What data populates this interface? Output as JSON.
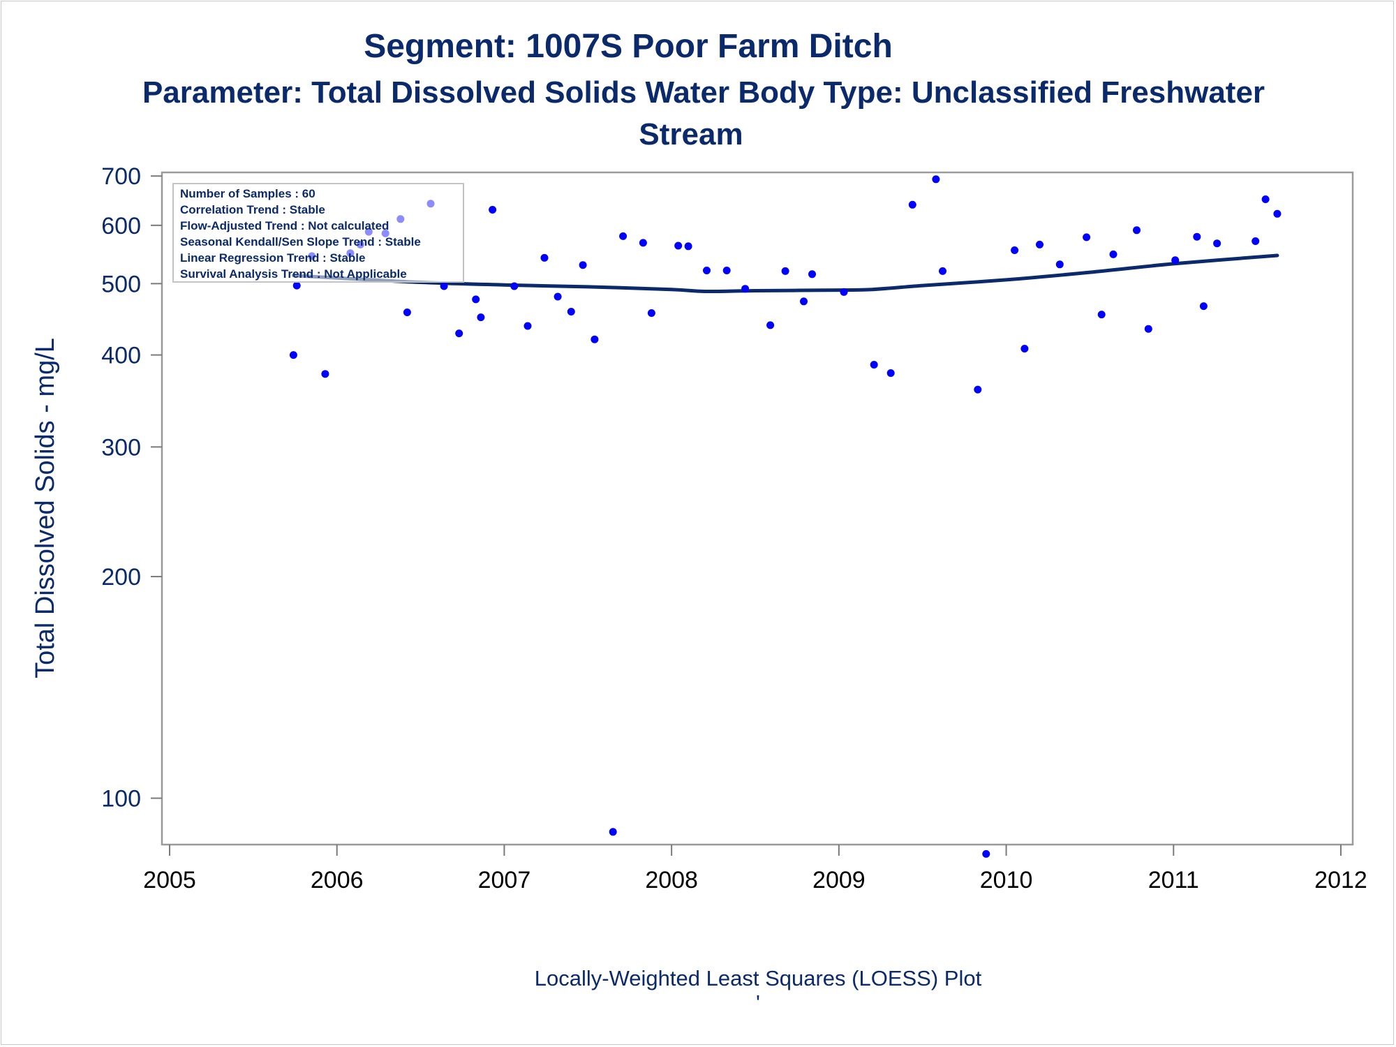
{
  "chart_data": {
    "type": "scatter",
    "title": "Segment: 1007S  Poor Farm Ditch",
    "subtitle_line1": "Parameter: Total Dissolved Solids   Water Body Type: Unclassified Freshwater",
    "subtitle_line2": "Stream",
    "ylabel": "Total Dissolved Solids - mg/L",
    "footnote": "Locally-Weighted Least Squares (LOESS) Plot",
    "footnote_mark": "'",
    "y_scale": "log",
    "ylim": [
      85,
      730
    ],
    "xlim": [
      2005,
      2012
    ],
    "x_ticks": [
      "2005",
      "2006",
      "2007",
      "2008",
      "2009",
      "2010",
      "2011",
      "2012"
    ],
    "y_ticks": [
      "100",
      "200",
      "300",
      "400",
      "500",
      "600",
      "700"
    ],
    "stats": [
      "Number of Samples : 60",
      "Correlation Trend : Stable",
      "Flow-Adjusted Trend : Not calculated",
      "Seasonal Kendall/Sen Slope Trend : Stable",
      "Linear Regression Trend : Stable",
      "Survival Analysis Trend : Not Applicable"
    ],
    "series": [
      {
        "kind": "points",
        "color": "#0000ff",
        "points": [
          [
            2005.74,
            400
          ],
          [
            2005.76,
            497
          ],
          [
            2005.85,
            545
          ],
          [
            2005.93,
            377
          ],
          [
            2006.08,
            550
          ],
          [
            2006.14,
            565
          ],
          [
            2006.19,
            588
          ],
          [
            2006.29,
            585
          ],
          [
            2006.38,
            612
          ],
          [
            2006.42,
            457
          ],
          [
            2006.56,
            642
          ],
          [
            2006.64,
            496
          ],
          [
            2006.73,
            428
          ],
          [
            2006.83,
            476
          ],
          [
            2006.86,
            450
          ],
          [
            2006.93,
            630
          ],
          [
            2007.06,
            496
          ],
          [
            2007.14,
            438
          ],
          [
            2007.24,
            542
          ],
          [
            2007.32,
            480
          ],
          [
            2007.4,
            458
          ],
          [
            2007.47,
            530
          ],
          [
            2007.54,
            420
          ],
          [
            2007.65,
            90
          ],
          [
            2007.71,
            580
          ],
          [
            2007.83,
            568
          ],
          [
            2007.88,
            456
          ],
          [
            2008.04,
            563
          ],
          [
            2008.1,
            562
          ],
          [
            2008.21,
            521
          ],
          [
            2008.33,
            521
          ],
          [
            2008.44,
            492
          ],
          [
            2008.59,
            439
          ],
          [
            2008.68,
            520
          ],
          [
            2008.79,
            473
          ],
          [
            2008.84,
            515
          ],
          [
            2009.03,
            487
          ],
          [
            2009.21,
            388
          ],
          [
            2009.31,
            378
          ],
          [
            2009.44,
            640
          ],
          [
            2009.58,
            693
          ],
          [
            2009.62,
            520
          ],
          [
            2009.83,
            359
          ],
          [
            2009.88,
            84
          ],
          [
            2010.05,
            555
          ],
          [
            2010.11,
            408
          ],
          [
            2010.2,
            565
          ],
          [
            2010.32,
            531
          ],
          [
            2010.48,
            578
          ],
          [
            2010.57,
            454
          ],
          [
            2010.64,
            548
          ],
          [
            2010.78,
            591
          ],
          [
            2010.85,
            434
          ],
          [
            2011.01,
            538
          ],
          [
            2011.14,
            579
          ],
          [
            2011.18,
            466
          ],
          [
            2011.26,
            567
          ],
          [
            2011.49,
            571
          ],
          [
            2011.55,
            651
          ],
          [
            2011.62,
            622
          ]
        ]
      },
      {
        "kind": "loess",
        "color": "#0b2a6b",
        "points": [
          [
            2005.74,
            513
          ],
          [
            2006.0,
            509
          ],
          [
            2006.5,
            502
          ],
          [
            2007.0,
            498
          ],
          [
            2007.5,
            495
          ],
          [
            2008.0,
            491
          ],
          [
            2008.2,
            488
          ],
          [
            2008.5,
            489
          ],
          [
            2009.0,
            490
          ],
          [
            2009.2,
            491
          ],
          [
            2009.5,
            497
          ],
          [
            2010.0,
            506
          ],
          [
            2010.5,
            518
          ],
          [
            2011.0,
            532
          ],
          [
            2011.62,
            546
          ]
        ]
      }
    ]
  }
}
